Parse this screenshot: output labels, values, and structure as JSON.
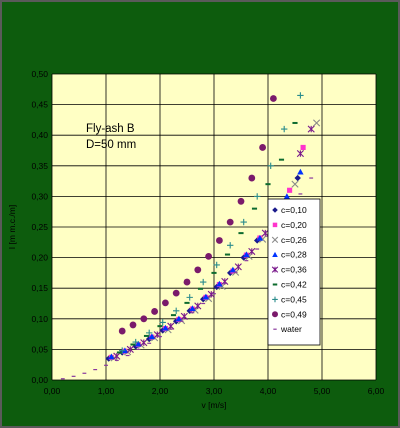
{
  "chart_data": {
    "type": "scatter",
    "title": "",
    "annotation": [
      "Fly-ash B",
      "D=50 mm"
    ],
    "xlabel": "v [m/s]",
    "ylabel": "I [m m.c./m]",
    "xlim": [
      0,
      6
    ],
    "ylim": [
      0,
      0.5
    ],
    "xticks": [
      "0,00",
      "1,00",
      "2,00",
      "3,00",
      "4,00",
      "5,00",
      "6,00"
    ],
    "yticks": [
      "0,00",
      "0,05",
      "0,10",
      "0,15",
      "0,20",
      "0,25",
      "0,30",
      "0,35",
      "0,40",
      "0,45",
      "0,50"
    ],
    "grid": true,
    "legend_position": "right",
    "colors": {
      "plot_background": "#ffffc4",
      "frame": "#0d5c0d",
      "grid": "#000000"
    },
    "series": [
      {
        "name": "c=0,10",
        "marker": "diamond",
        "color": "#1a1a8c",
        "x": [
          1.05,
          1.3,
          1.55,
          1.8,
          2.05,
          2.3,
          2.55,
          2.8,
          3.05,
          3.3,
          3.55,
          3.8,
          4.05,
          4.3,
          4.55
        ],
        "y": [
          0.035,
          0.045,
          0.055,
          0.067,
          0.081,
          0.096,
          0.113,
          0.132,
          0.152,
          0.175,
          0.2,
          0.228,
          0.26,
          0.29,
          0.33
        ]
      },
      {
        "name": "c=0,20",
        "marker": "square",
        "color": "#ff33cc",
        "x": [
          1.1,
          1.35,
          1.6,
          1.85,
          2.1,
          2.35,
          2.6,
          2.85,
          3.1,
          3.35,
          3.6,
          3.85,
          4.1,
          4.4,
          4.65
        ],
        "y": [
          0.037,
          0.047,
          0.058,
          0.07,
          0.084,
          0.099,
          0.116,
          0.135,
          0.156,
          0.178,
          0.204,
          0.232,
          0.265,
          0.31,
          0.38
        ]
      },
      {
        "name": "c=0,26",
        "marker": "x",
        "color": "#8a8a8a",
        "x": [
          1.15,
          1.4,
          1.65,
          1.9,
          2.15,
          2.4,
          2.65,
          2.9,
          3.15,
          3.4,
          3.65,
          3.9,
          4.2,
          4.5,
          4.9
        ],
        "y": [
          0.036,
          0.046,
          0.057,
          0.069,
          0.082,
          0.097,
          0.114,
          0.133,
          0.153,
          0.176,
          0.202,
          0.23,
          0.265,
          0.32,
          0.42
        ]
      },
      {
        "name": "c=0,28",
        "marker": "triangle",
        "color": "#0033ff",
        "x": [
          1.1,
          1.35,
          1.6,
          1.85,
          2.1,
          2.35,
          2.6,
          2.85,
          3.1,
          3.35,
          3.6,
          3.85,
          4.1,
          4.35,
          4.6
        ],
        "y": [
          0.038,
          0.048,
          0.059,
          0.071,
          0.085,
          0.1,
          0.117,
          0.136,
          0.157,
          0.18,
          0.205,
          0.232,
          0.262,
          0.3,
          0.34
        ]
      },
      {
        "name": "c=0,36",
        "marker": "star",
        "color": "#7a1a8c",
        "x": [
          1.2,
          1.45,
          1.7,
          1.95,
          2.2,
          2.45,
          2.7,
          2.95,
          3.2,
          3.45,
          3.7,
          3.95,
          4.25,
          4.6,
          4.8
        ],
        "y": [
          0.039,
          0.05,
          0.061,
          0.074,
          0.088,
          0.104,
          0.121,
          0.14,
          0.161,
          0.185,
          0.21,
          0.24,
          0.28,
          0.37,
          0.41
        ]
      },
      {
        "name": "c=0,42",
        "marker": "dot",
        "color": "#0d6b2e",
        "x": [
          1.25,
          1.5,
          1.75,
          2.0,
          2.25,
          2.5,
          2.75,
          3.0,
          3.25,
          3.5,
          3.75,
          4.0,
          4.25,
          4.5
        ],
        "y": [
          0.045,
          0.058,
          0.072,
          0.088,
          0.106,
          0.126,
          0.149,
          0.175,
          0.205,
          0.24,
          0.28,
          0.32,
          0.36,
          0.42
        ]
      },
      {
        "name": "c=0,45",
        "marker": "plus",
        "color": "#2a8c8c",
        "x": [
          1.3,
          1.55,
          1.8,
          2.05,
          2.3,
          2.55,
          2.8,
          3.05,
          3.3,
          3.55,
          3.8,
          4.05,
          4.3,
          4.6
        ],
        "y": [
          0.048,
          0.062,
          0.077,
          0.094,
          0.113,
          0.135,
          0.16,
          0.188,
          0.22,
          0.258,
          0.3,
          0.35,
          0.41,
          0.465
        ]
      },
      {
        "name": "c=0,49",
        "marker": "circle",
        "color": "#7a1a6b",
        "x": [
          1.3,
          1.5,
          1.7,
          1.9,
          2.1,
          2.3,
          2.5,
          2.7,
          2.9,
          3.1,
          3.3,
          3.5,
          3.7,
          3.9,
          4.1
        ],
        "y": [
          0.08,
          0.09,
          0.1,
          0.112,
          0.126,
          0.142,
          0.16,
          0.18,
          0.202,
          0.228,
          0.258,
          0.292,
          0.33,
          0.38,
          0.46
        ]
      },
      {
        "name": "water",
        "marker": "dash",
        "color": "#8a3a9e",
        "x": [
          0.2,
          0.4,
          0.6,
          0.8,
          1.0,
          1.2,
          1.4,
          1.6,
          1.8,
          2.0,
          2.2,
          2.4,
          2.6,
          2.8,
          3.0,
          3.2,
          3.4,
          3.6,
          3.8,
          4.0,
          4.2,
          4.4,
          4.6,
          4.8
        ],
        "y": [
          0.002,
          0.006,
          0.011,
          0.017,
          0.024,
          0.032,
          0.04,
          0.05,
          0.06,
          0.071,
          0.083,
          0.096,
          0.11,
          0.125,
          0.141,
          0.158,
          0.176,
          0.195,
          0.214,
          0.235,
          0.257,
          0.28,
          0.304,
          0.33
        ]
      }
    ]
  }
}
